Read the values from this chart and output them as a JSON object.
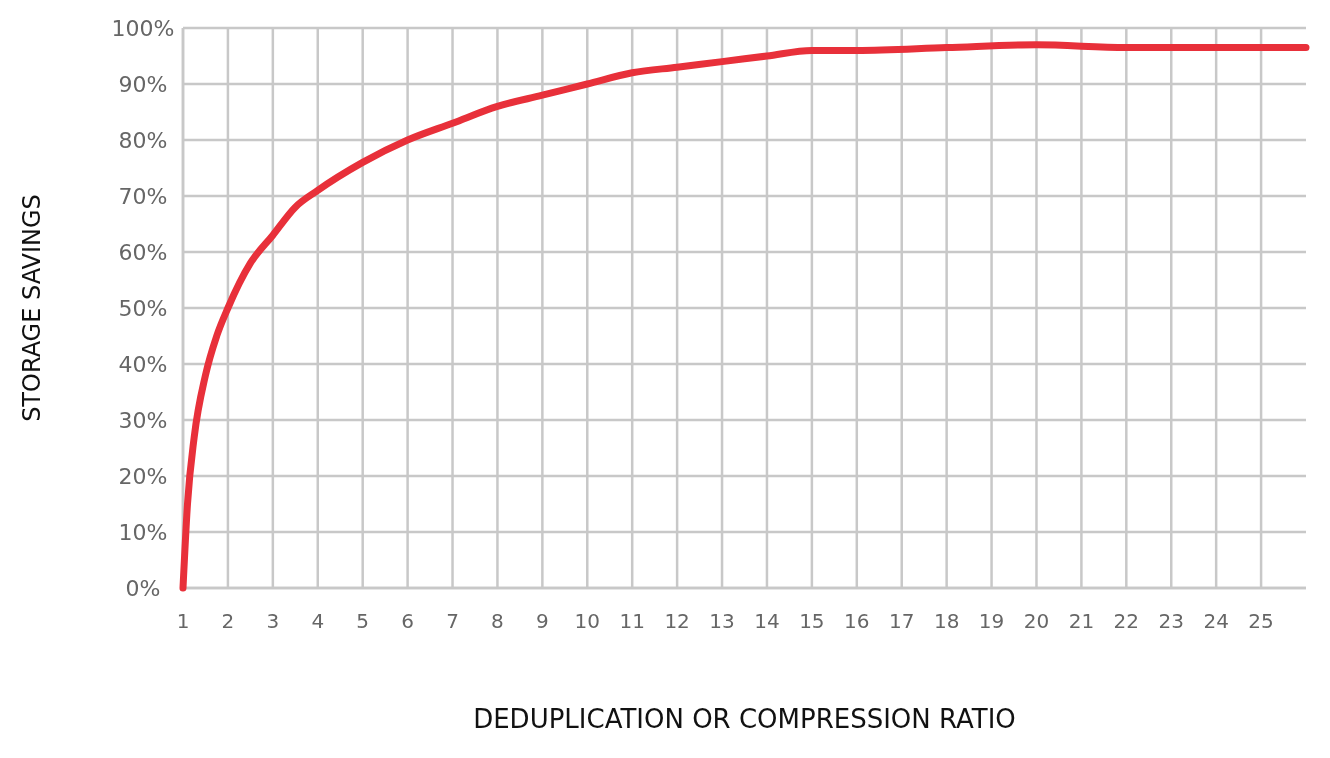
{
  "chart_data": {
    "type": "line",
    "xlabel": "DEDUPLICATION OR COMPRESSION RATIO",
    "ylabel": "STORAGE SAVINGS",
    "xlim": [
      1,
      26
    ],
    "xticks": [
      1,
      2,
      3,
      4,
      5,
      6,
      7,
      8,
      9,
      10,
      11,
      12,
      13,
      14,
      15,
      16,
      17,
      18,
      19,
      20,
      21,
      22,
      23,
      24,
      25
    ],
    "ylim": [
      0,
      100
    ],
    "yticks": [
      {
        "value": 0,
        "label": "0%"
      },
      {
        "value": 10,
        "label": "10%"
      },
      {
        "value": 20,
        "label": "20%"
      },
      {
        "value": 30,
        "label": "30%"
      },
      {
        "value": 40,
        "label": "40%"
      },
      {
        "value": 50,
        "label": "50%"
      },
      {
        "value": 60,
        "label": "60%"
      },
      {
        "value": 70,
        "label": "70%"
      },
      {
        "value": 80,
        "label": "80%"
      },
      {
        "value": 90,
        "label": "90%"
      },
      {
        "value": 100,
        "label": "100%"
      }
    ],
    "grid": true,
    "marker": "none",
    "line_style": "solid",
    "series": [
      {
        "color": "#e8303a",
        "x": [
          1,
          1.1,
          1.25,
          1.5,
          1.75,
          2,
          2.5,
          3,
          3.5,
          4,
          5,
          6,
          7,
          8,
          9,
          10,
          11,
          12,
          13,
          14,
          15,
          16,
          18,
          20,
          22,
          24,
          26
        ],
        "values": [
          0,
          15,
          27,
          38,
          45,
          50,
          58,
          63,
          68,
          71,
          76,
          80,
          83,
          86,
          88,
          90,
          92,
          93,
          94,
          95,
          96,
          96,
          96.5,
          97,
          96.5,
          96.5,
          96.5
        ]
      }
    ]
  }
}
